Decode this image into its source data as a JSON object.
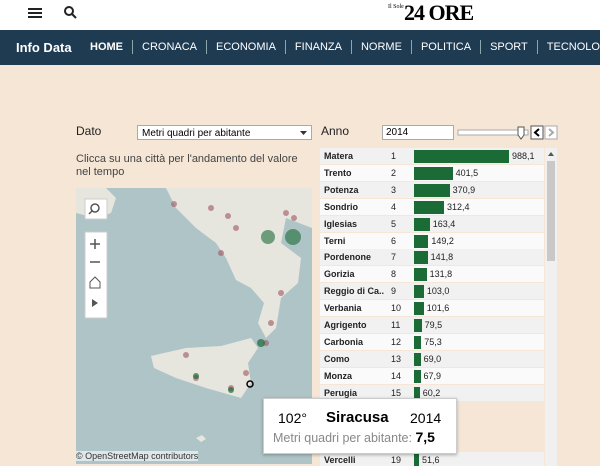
{
  "header": {
    "logo_small": "Il Sole",
    "logo_big": "24 ORE"
  },
  "nav": {
    "brand": "Info Data",
    "items": [
      "HOME",
      "CRONACA",
      "ECONOMIA",
      "FINANZA",
      "NORME",
      "POLITICA",
      "SPORT",
      "TECNOLOGIA"
    ]
  },
  "controls": {
    "dato_label": "Dato",
    "dato_value": "Metri quadri per abitante",
    "anno_label": "Anno",
    "anno_value": "2014"
  },
  "instruction": "Clicca su una città per l'andamento del valore nel tempo",
  "map": {
    "attribution": "© OpenStreetMap contributors"
  },
  "ranking": {
    "rows": [
      {
        "name": "Matera",
        "rank": 1,
        "value": 988.1,
        "value_label": "988,1"
      },
      {
        "name": "Trento",
        "rank": 2,
        "value": 401.5,
        "value_label": "401,5"
      },
      {
        "name": "Potenza",
        "rank": 3,
        "value": 370.9,
        "value_label": "370,9"
      },
      {
        "name": "Sondrio",
        "rank": 4,
        "value": 312.4,
        "value_label": "312,4"
      },
      {
        "name": "Iglesias",
        "rank": 5,
        "value": 163.4,
        "value_label": "163,4"
      },
      {
        "name": "Terni",
        "rank": 6,
        "value": 149.2,
        "value_label": "149,2"
      },
      {
        "name": "Pordenone",
        "rank": 7,
        "value": 141.8,
        "value_label": "141,8"
      },
      {
        "name": "Gorizia",
        "rank": 8,
        "value": 131.8,
        "value_label": "131,8"
      },
      {
        "name": "Reggio di Ca..",
        "rank": 9,
        "value": 103.0,
        "value_label": "103,0"
      },
      {
        "name": "Verbania",
        "rank": 10,
        "value": 101.6,
        "value_label": "101,6"
      },
      {
        "name": "Agrigento",
        "rank": 11,
        "value": 79.5,
        "value_label": "79,5"
      },
      {
        "name": "Carbonia",
        "rank": 12,
        "value": 75.3,
        "value_label": "75,3"
      },
      {
        "name": "Como",
        "rank": 13,
        "value": 69.0,
        "value_label": "69,0"
      },
      {
        "name": "Monza",
        "rank": 14,
        "value": 67.9,
        "value_label": "67,9"
      },
      {
        "name": "Perugia",
        "rank": 15,
        "value": 60.2,
        "value_label": "60,2"
      },
      {
        "name": "Vercelli",
        "rank": 19,
        "value": 51.6,
        "value_label": "51,6"
      }
    ]
  },
  "tooltip": {
    "rank": "102°",
    "city": "Siracusa",
    "year": "2014",
    "metric": "Metri quadri per abitante:",
    "value": 7.5,
    "value_label": "7,5"
  }
}
